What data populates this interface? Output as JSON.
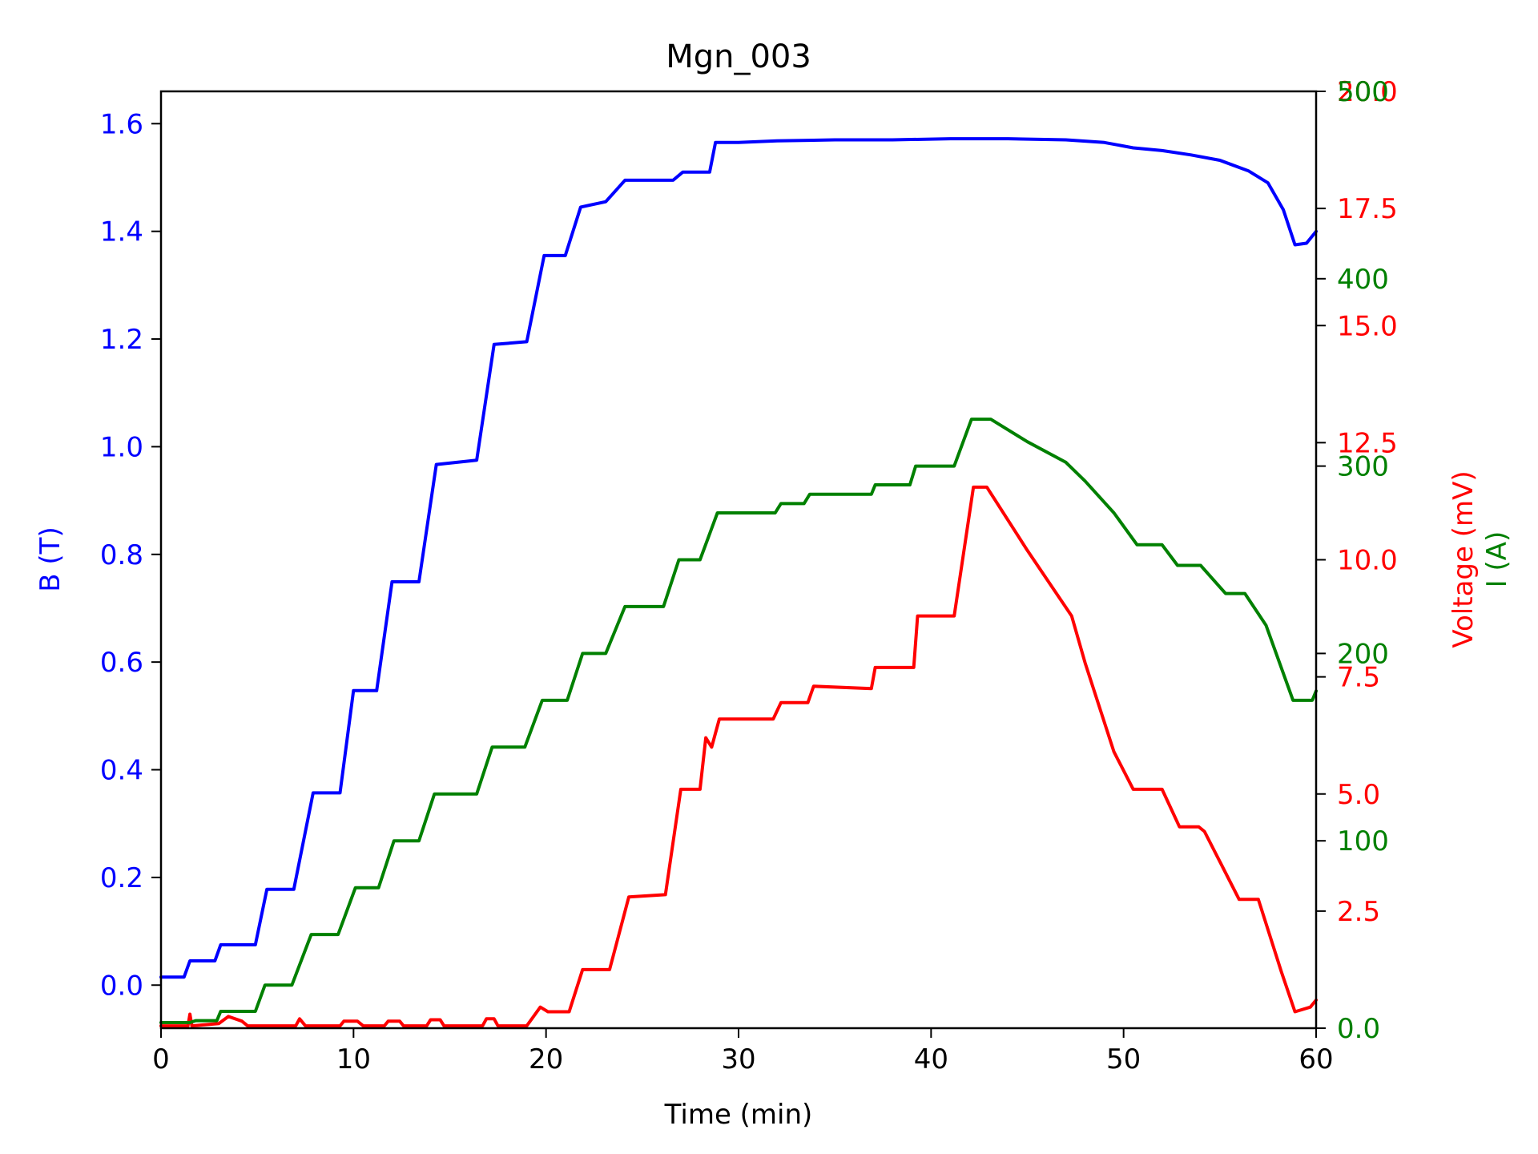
{
  "chart_data": {
    "type": "line",
    "title": "Mgn_003",
    "xlabel": "Time (min)",
    "xlim": [
      0,
      60
    ],
    "xticks": [
      "0",
      "10",
      "20",
      "30",
      "40",
      "50",
      "60"
    ],
    "axes": {
      "left": {
        "label": "B (T)",
        "color": "#0000ff",
        "ylim": [
          -0.08,
          1.66
        ],
        "ticks": [
          {
            "v": 0.0,
            "t": "0.0"
          },
          {
            "v": 0.2,
            "t": "0.2"
          },
          {
            "v": 0.4,
            "t": "0.4"
          },
          {
            "v": 0.6,
            "t": "0.6"
          },
          {
            "v": 0.8,
            "t": "0.8"
          },
          {
            "v": 1.0,
            "t": "1.0"
          },
          {
            "v": 1.2,
            "t": "1.2"
          },
          {
            "v": 1.4,
            "t": "1.4"
          },
          {
            "v": 1.6,
            "t": "1.6"
          }
        ]
      },
      "voltage": {
        "label": "Voltage (mV)",
        "color": "#ff0000",
        "ylim": [
          0,
          20
        ],
        "ticks": [
          {
            "v": 2.5,
            "t": "2.5"
          },
          {
            "v": 5.0,
            "t": "5.0"
          },
          {
            "v": 7.5,
            "t": "7.5"
          },
          {
            "v": 10.0,
            "t": "10.0"
          },
          {
            "v": 12.5,
            "t": "12.5"
          },
          {
            "v": 15.0,
            "t": "15.0"
          },
          {
            "v": 17.5,
            "t": "17.5"
          },
          {
            "v": 20.0,
            "t": "20.0"
          }
        ]
      },
      "current": {
        "label": "I (A)",
        "color": "#008000",
        "ylim": [
          0,
          500
        ],
        "ticks": [
          {
            "v": 0,
            "t": "0.0"
          },
          {
            "v": 100,
            "t": "100"
          },
          {
            "v": 200,
            "t": "200"
          },
          {
            "v": 300,
            "t": "300"
          },
          {
            "v": 400,
            "t": "400"
          },
          {
            "v": 500,
            "t": "500"
          }
        ]
      }
    },
    "series": [
      {
        "name": "B",
        "axis": "left",
        "color": "#0000ff",
        "points": [
          [
            0,
            0.015
          ],
          [
            1.2,
            0.015
          ],
          [
            1.5,
            0.045
          ],
          [
            2.8,
            0.045
          ],
          [
            3.1,
            0.075
          ],
          [
            4.9,
            0.075
          ],
          [
            5.5,
            0.178
          ],
          [
            6.9,
            0.178
          ],
          [
            7.9,
            0.357
          ],
          [
            9.3,
            0.357
          ],
          [
            10.0,
            0.547
          ],
          [
            11.2,
            0.547
          ],
          [
            12.0,
            0.749
          ],
          [
            13.4,
            0.749
          ],
          [
            14.3,
            0.967
          ],
          [
            16.4,
            0.975
          ],
          [
            17.3,
            1.19
          ],
          [
            19.0,
            1.195
          ],
          [
            19.9,
            1.355
          ],
          [
            21.0,
            1.355
          ],
          [
            21.8,
            1.445
          ],
          [
            23.1,
            1.455
          ],
          [
            24.1,
            1.495
          ],
          [
            26.6,
            1.495
          ],
          [
            27.1,
            1.51
          ],
          [
            28.5,
            1.51
          ],
          [
            28.8,
            1.565
          ],
          [
            30,
            1.565
          ],
          [
            32,
            1.568
          ],
          [
            35,
            1.57
          ],
          [
            38,
            1.57
          ],
          [
            41,
            1.572
          ],
          [
            44,
            1.572
          ],
          [
            47,
            1.57
          ],
          [
            49,
            1.565
          ],
          [
            50.5,
            1.555
          ],
          [
            52,
            1.55
          ],
          [
            53.5,
            1.542
          ],
          [
            55,
            1.532
          ],
          [
            56.5,
            1.512
          ],
          [
            57.5,
            1.49
          ],
          [
            58.3,
            1.44
          ],
          [
            58.9,
            1.375
          ],
          [
            59.5,
            1.378
          ],
          [
            60,
            1.4
          ]
        ]
      },
      {
        "name": "Voltage",
        "axis": "voltage",
        "color": "#ff0000",
        "points": [
          [
            0,
            0.05
          ],
          [
            1.4,
            0.05
          ],
          [
            1.5,
            0.3
          ],
          [
            1.6,
            0.05
          ],
          [
            3,
            0.1
          ],
          [
            3.5,
            0.25
          ],
          [
            4.2,
            0.15
          ],
          [
            4.5,
            0.05
          ],
          [
            7.0,
            0.05
          ],
          [
            7.2,
            0.2
          ],
          [
            7.5,
            0.05
          ],
          [
            9.3,
            0.05
          ],
          [
            9.5,
            0.15
          ],
          [
            10.2,
            0.15
          ],
          [
            10.5,
            0.05
          ],
          [
            11.6,
            0.05
          ],
          [
            11.8,
            0.15
          ],
          [
            12.4,
            0.15
          ],
          [
            12.6,
            0.05
          ],
          [
            13.8,
            0.05
          ],
          [
            14.0,
            0.18
          ],
          [
            14.5,
            0.18
          ],
          [
            14.7,
            0.05
          ],
          [
            16.7,
            0.05
          ],
          [
            16.9,
            0.2
          ],
          [
            17.3,
            0.2
          ],
          [
            17.5,
            0.05
          ],
          [
            19.0,
            0.05
          ],
          [
            19.7,
            0.45
          ],
          [
            20.1,
            0.35
          ],
          [
            20.3,
            0.35
          ],
          [
            21.2,
            0.35
          ],
          [
            21.9,
            1.25
          ],
          [
            23.3,
            1.25
          ],
          [
            24.3,
            2.8
          ],
          [
            26.2,
            2.85
          ],
          [
            27.0,
            5.1
          ],
          [
            28.0,
            5.1
          ],
          [
            28.3,
            6.2
          ],
          [
            28.6,
            6.0
          ],
          [
            29.0,
            6.6
          ],
          [
            31.8,
            6.6
          ],
          [
            32.2,
            6.95
          ],
          [
            33.6,
            6.95
          ],
          [
            33.9,
            7.3
          ],
          [
            36.9,
            7.25
          ],
          [
            37.1,
            7.7
          ],
          [
            39.1,
            7.7
          ],
          [
            39.3,
            8.8
          ],
          [
            41.2,
            8.8
          ],
          [
            42.2,
            11.55
          ],
          [
            42.9,
            11.55
          ],
          [
            45,
            10.2
          ],
          [
            47.3,
            8.8
          ],
          [
            48.0,
            7.8
          ],
          [
            49.5,
            5.9
          ],
          [
            50.5,
            5.1
          ],
          [
            52.0,
            5.1
          ],
          [
            52.9,
            4.3
          ],
          [
            53.9,
            4.3
          ],
          [
            54.2,
            4.2
          ],
          [
            56.0,
            2.75
          ],
          [
            57.0,
            2.75
          ],
          [
            58.2,
            1.2
          ],
          [
            58.9,
            0.35
          ],
          [
            59.7,
            0.45
          ],
          [
            60,
            0.6
          ]
        ]
      },
      {
        "name": "I",
        "axis": "current",
        "color": "#008000",
        "points": [
          [
            0,
            3
          ],
          [
            1.5,
            3
          ],
          [
            1.8,
            4
          ],
          [
            2.9,
            4
          ],
          [
            3.1,
            9
          ],
          [
            4.9,
            9
          ],
          [
            5.4,
            23
          ],
          [
            6.8,
            23
          ],
          [
            7.8,
            50
          ],
          [
            9.2,
            50
          ],
          [
            10.1,
            75
          ],
          [
            11.3,
            75
          ],
          [
            12.1,
            100
          ],
          [
            13.4,
            100
          ],
          [
            14.2,
            125
          ],
          [
            16.4,
            125
          ],
          [
            17.2,
            150
          ],
          [
            18.9,
            150
          ],
          [
            19.8,
            175
          ],
          [
            21.1,
            175
          ],
          [
            21.9,
            200
          ],
          [
            23.1,
            200
          ],
          [
            24.1,
            225
          ],
          [
            26.1,
            225
          ],
          [
            26.9,
            250
          ],
          [
            28.0,
            250
          ],
          [
            28.9,
            275
          ],
          [
            31.9,
            275
          ],
          [
            32.2,
            280
          ],
          [
            33.4,
            280
          ],
          [
            33.7,
            285
          ],
          [
            36.9,
            285
          ],
          [
            37.1,
            290
          ],
          [
            38.9,
            290
          ],
          [
            39.2,
            300
          ],
          [
            41.2,
            300
          ],
          [
            42.1,
            325
          ],
          [
            43.1,
            325
          ],
          [
            45,
            313
          ],
          [
            47,
            302
          ],
          [
            48,
            292
          ],
          [
            49.5,
            275
          ],
          [
            50.7,
            258
          ],
          [
            52.0,
            258
          ],
          [
            52.8,
            247
          ],
          [
            54.0,
            247
          ],
          [
            55.3,
            232
          ],
          [
            56.3,
            232
          ],
          [
            57.4,
            215
          ],
          [
            58.8,
            175
          ],
          [
            59.8,
            175
          ],
          [
            60,
            180
          ]
        ]
      }
    ]
  }
}
